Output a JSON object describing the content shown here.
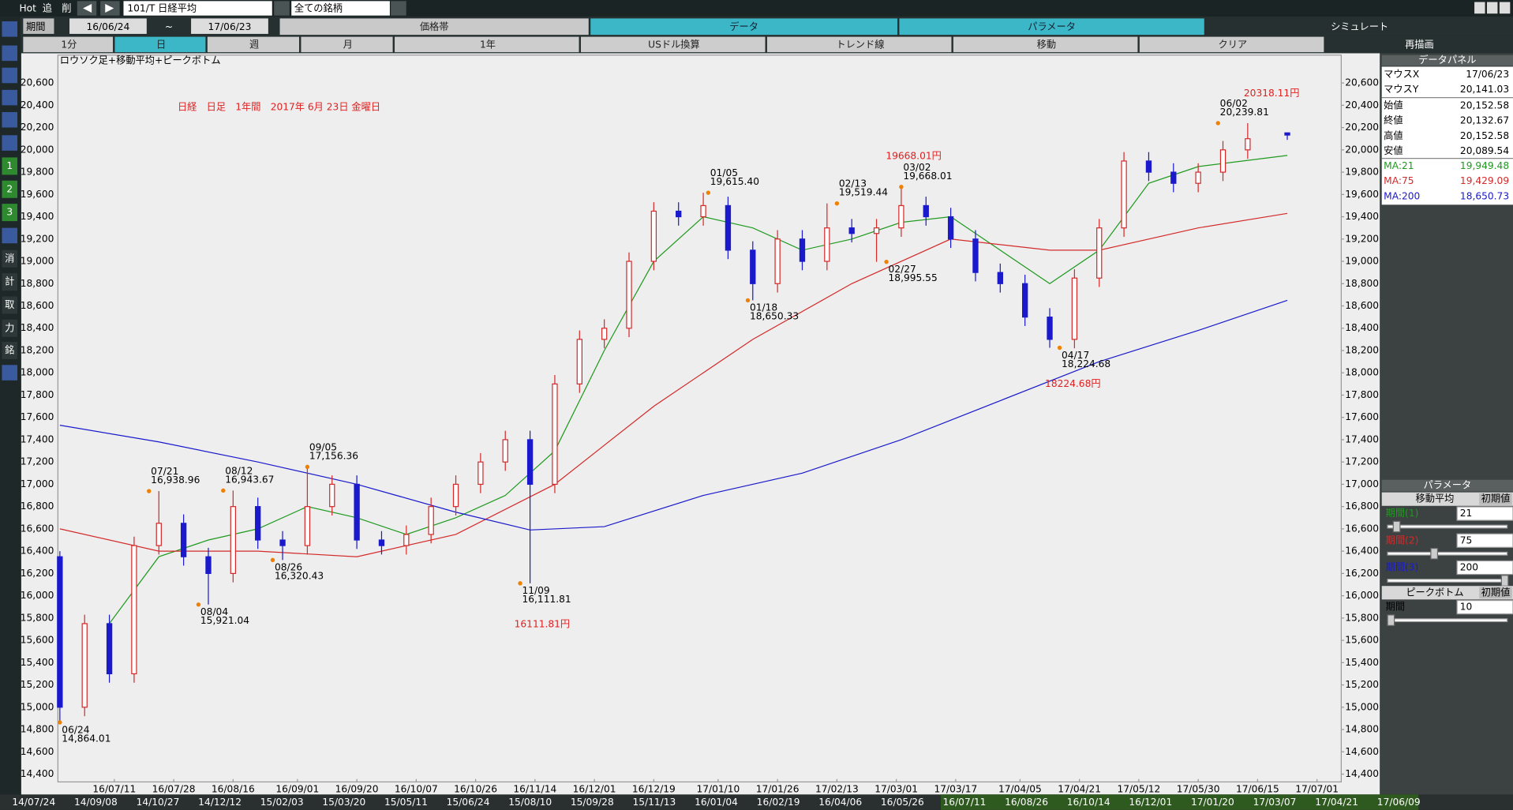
{
  "ui": {
    "top": {
      "hot": "Hot",
      "add": "追",
      "del": "削",
      "symbol": "101/T 日経平均",
      "filter": "全ての銘柄"
    },
    "period": {
      "label": "期間",
      "from": "16/06/24",
      "sep": "~",
      "to": "17/06/23"
    },
    "tabs": [
      "価格帯",
      "データ",
      "パラメータ",
      "シミュレート"
    ],
    "buttons": [
      "1分",
      "日",
      "週",
      "月",
      "1年",
      "USドル換算",
      "トレンド線",
      "移動",
      "クリア",
      "再描画"
    ],
    "left_tools": [
      "1",
      "2",
      "3",
      "消",
      "計",
      "取",
      "力",
      "銘"
    ],
    "caption": "ロウソク足+移動平均+ピークボトム",
    "data_panel": {
      "title": "データパネル",
      "rows": [
        [
          "マウスX",
          "17/06/23"
        ],
        [
          "マウスY",
          "20,141.03"
        ],
        [
          "始値",
          "20,152.58"
        ],
        [
          "終値",
          "20,132.67"
        ],
        [
          "高値",
          "20,152.58"
        ],
        [
          "安値",
          "20,089.54"
        ]
      ],
      "ma_values": [
        "19,949.48",
        "19,429.09",
        "18,650.73"
      ]
    },
    "param_panel": {
      "title": "パラメータ",
      "ma_section": "移動平均",
      "ma_reset": "初期値",
      "ma_rows": [
        [
          "期間(1)",
          21
        ],
        [
          "期間(2)",
          75
        ],
        [
          "期間(3)",
          200
        ]
      ],
      "peak_section": "ピークボトム",
      "peak_reset": "初期値",
      "peak_rows": [
        [
          "期間",
          10
        ]
      ]
    },
    "timeline": [
      "14/07/24",
      "14/09/08",
      "14/10/27",
      "14/12/12",
      "15/02/03",
      "15/03/20",
      "15/05/11",
      "15/06/24",
      "15/08/10",
      "15/09/28",
      "15/11/13",
      "16/01/04",
      "16/02/19",
      "16/04/06",
      "16/05/26",
      "16/07/11",
      "16/08/26",
      "16/10/14",
      "16/12/01",
      "17/01/20",
      "17/03/07",
      "17/04/21",
      "17/06/09"
    ]
  },
  "chart_data": {
    "type": "candlestick",
    "title": "日経　日足　1年間　2017年 6月 23日 金曜日",
    "x": [
      0,
      5,
      10,
      15,
      20,
      25,
      30,
      35,
      40,
      45,
      50,
      55,
      60,
      65,
      70,
      75,
      80,
      85,
      90,
      95,
      100,
      105,
      110,
      115,
      120,
      125,
      130,
      135,
      140,
      145,
      150,
      155,
      160,
      165,
      170,
      175,
      180,
      185,
      190,
      195,
      200,
      205,
      210,
      215,
      220,
      225,
      230,
      235,
      240,
      248
    ],
    "open": [
      16350,
      15000,
      15750,
      15300,
      16450,
      16650,
      16350,
      16200,
      16800,
      16500,
      16450,
      16800,
      17000,
      16500,
      16450,
      16550,
      16800,
      17000,
      17200,
      17400,
      17000,
      17900,
      18300,
      18400,
      19000,
      19450,
      19400,
      19500,
      19100,
      18800,
      19200,
      19000,
      19300,
      19250,
      19300,
      19500,
      19400,
      19200,
      18900,
      18800,
      18500,
      18300,
      18850,
      19300,
      19900,
      19800,
      19700,
      19800,
      20000,
      20152.58
    ],
    "high": [
      16400,
      15830,
      15830,
      16530,
      16938.96,
      16730,
      16430,
      16943.67,
      16880,
      16580,
      17156.36,
      17080,
      17080,
      16580,
      16630,
      16880,
      17080,
      17280,
      17480,
      17480,
      17980,
      18380,
      18480,
      19080,
      19530,
      19530,
      19615.4,
      19580,
      19180,
      19280,
      19280,
      19519.44,
      19380,
      19380,
      19668.01,
      19580,
      19480,
      19280,
      18980,
      18880,
      18580,
      18930,
      19380,
      19980,
      19980,
      19880,
      19880,
      20080,
      20239.81,
      20152.58
    ],
    "low": [
      14864.01,
      14920,
      15220,
      15220,
      16370,
      16270,
      15921.04,
      16120,
      16420,
      16320.43,
      16370,
      16720,
      16420,
      16370,
      16370,
      16470,
      16720,
      16920,
      17120,
      16111.81,
      16920,
      17820,
      18220,
      18320,
      18920,
      19320,
      19320,
      19020,
      18650.33,
      18720,
      18920,
      18920,
      19170,
      18995.55,
      19220,
      19320,
      19120,
      18820,
      18720,
      18420,
      18224.68,
      18220,
      18770,
      19220,
      19720,
      19620,
      19620,
      19720,
      19920,
      20089.54
    ],
    "close": [
      15000,
      15750,
      15300,
      16450,
      16650,
      16350,
      16200,
      16800,
      16500,
      16450,
      16800,
      17000,
      16500,
      16450,
      16550,
      16800,
      17000,
      17200,
      17400,
      17000,
      17900,
      18300,
      18400,
      19000,
      19450,
      19400,
      19500,
      19100,
      18800,
      19200,
      19000,
      19300,
      19250,
      19300,
      19500,
      19400,
      19200,
      18900,
      18800,
      18500,
      18300,
      18850,
      19300,
      19900,
      19800,
      19700,
      19800,
      20000,
      20100,
      20132.67
    ],
    "up_color": "#d42a2a",
    "down_color": "#1a1acc",
    "grid": false,
    "xlim": [
      -0.4,
      258.9
    ],
    "xticks": [
      {
        "value": 11,
        "label": "16/07/11"
      },
      {
        "value": 23,
        "label": "16/07/28"
      },
      {
        "value": 35,
        "label": "16/08/16"
      },
      {
        "value": 48,
        "label": "16/09/01"
      },
      {
        "value": 60,
        "label": "16/09/20"
      },
      {
        "value": 72,
        "label": "16/10/07"
      },
      {
        "value": 84,
        "label": "16/10/26"
      },
      {
        "value": 96,
        "label": "16/11/14"
      },
      {
        "value": 108,
        "label": "16/12/01"
      },
      {
        "value": 120,
        "label": "16/12/19"
      },
      {
        "value": 133,
        "label": "17/01/10"
      },
      {
        "value": 145,
        "label": "17/01/26"
      },
      {
        "value": 157,
        "label": "17/02/13"
      },
      {
        "value": 169,
        "label": "17/03/01"
      },
      {
        "value": 181,
        "label": "17/03/17"
      },
      {
        "value": 194,
        "label": "17/04/05"
      },
      {
        "value": 206,
        "label": "17/04/21"
      },
      {
        "value": 218,
        "label": "17/05/12"
      },
      {
        "value": 230,
        "label": "17/05/30"
      },
      {
        "value": 242,
        "label": "17/06/15"
      },
      {
        "value": 254,
        "label": "17/07/01"
      }
    ],
    "ylim": [
      14330,
      20850
    ],
    "yticks": [
      {
        "value": 14400,
        "label": "14,400"
      },
      {
        "value": 14600,
        "label": "14,600"
      },
      {
        "value": 14800,
        "label": "14,800"
      },
      {
        "value": 15000,
        "label": "15,000"
      },
      {
        "value": 15200,
        "label": "15,200"
      },
      {
        "value": 15400,
        "label": "15,400"
      },
      {
        "value": 15600,
        "label": "15,600"
      },
      {
        "value": 15800,
        "label": "15,800"
      },
      {
        "value": 16000,
        "label": "16,000"
      },
      {
        "value": 16200,
        "label": "16,200"
      },
      {
        "value": 16400,
        "label": "16,400"
      },
      {
        "value": 16600,
        "label": "16,600"
      },
      {
        "value": 16800,
        "label": "16,800"
      },
      {
        "value": 17000,
        "label": "17,000"
      },
      {
        "value": 17200,
        "label": "17,200"
      },
      {
        "value": 17400,
        "label": "17,400"
      },
      {
        "value": 17600,
        "label": "17,600"
      },
      {
        "value": 17800,
        "label": "17,800"
      },
      {
        "value": 18000,
        "label": "18,000"
      },
      {
        "value": 18200,
        "label": "18,200"
      },
      {
        "value": 18400,
        "label": "18,400"
      },
      {
        "value": 18600,
        "label": "18,600"
      },
      {
        "value": 18800,
        "label": "18,800"
      },
      {
        "value": 19000,
        "label": "19,000"
      },
      {
        "value": 19200,
        "label": "19,200"
      },
      {
        "value": 19400,
        "label": "19,400"
      },
      {
        "value": 19600,
        "label": "19,600"
      },
      {
        "value": 19800,
        "label": "19,800"
      },
      {
        "value": 20000,
        "label": "20,000"
      },
      {
        "value": 20200,
        "label": "20,200"
      },
      {
        "value": 20400,
        "label": "20,400"
      },
      {
        "value": 20600,
        "label": "20,600"
      }
    ],
    "series": [
      {
        "name": "MA:21",
        "color": "#1f9a1f",
        "x": [
          10,
          20,
          30,
          40,
          50,
          60,
          70,
          80,
          90,
          100,
          110,
          120,
          130,
          140,
          150,
          160,
          170,
          180,
          190,
          200,
          210,
          220,
          230,
          248
        ],
        "values": [
          15750,
          16350,
          16500,
          16600,
          16800,
          16700,
          16550,
          16700,
          16900,
          17300,
          18200,
          19000,
          19400,
          19300,
          19100,
          19200,
          19350,
          19400,
          19100,
          18800,
          19100,
          19700,
          19850,
          19950
        ]
      },
      {
        "name": "MA:75",
        "color": "#d42a2a",
        "x": [
          0,
          20,
          40,
          60,
          80,
          100,
          120,
          140,
          160,
          180,
          200,
          210,
          230,
          248
        ],
        "values": [
          16600,
          16400,
          16400,
          16350,
          16550,
          17000,
          17700,
          18300,
          18800,
          19200,
          19100,
          19100,
          19300,
          19430
        ]
      },
      {
        "name": "MA:200",
        "color": "#1a1acc",
        "x": [
          0,
          20,
          40,
          60,
          80,
          95,
          110,
          130,
          150,
          170,
          190,
          210,
          230,
          248
        ],
        "values": [
          17530,
          17380,
          17200,
          17000,
          16750,
          16590,
          16620,
          16900,
          17100,
          17400,
          17750,
          18100,
          18380,
          18650
        ]
      }
    ],
    "peaks": [
      {
        "x": 0,
        "date": "06/24",
        "value": 14864.01,
        "label": "14,864.01"
      },
      {
        "x": 18,
        "date": "07/21",
        "value": 16938.96,
        "label": "16,938.96"
      },
      {
        "x": 28,
        "date": "08/04",
        "value": 15921.04,
        "label": "15,921.04"
      },
      {
        "x": 33,
        "date": "08/12",
        "value": 16943.67,
        "label": "16,943.67"
      },
      {
        "x": 43,
        "date": "08/26",
        "value": 16320.43,
        "label": "16,320.43"
      },
      {
        "x": 50,
        "date": "09/05",
        "value": 17156.36,
        "label": "17,156.36"
      },
      {
        "x": 93,
        "date": "11/09",
        "value": 16111.81,
        "label": "16,111.81"
      },
      {
        "x": 131,
        "date": "01/05",
        "value": 19615.4,
        "label": "19,615.40"
      },
      {
        "x": 139,
        "date": "01/18",
        "value": 18650.33,
        "label": "18,650.33"
      },
      {
        "x": 157,
        "date": "02/13",
        "value": 19519.44,
        "label": "19,519.44"
      },
      {
        "x": 167,
        "date": "02/27",
        "value": 18995.55,
        "label": "18,995.55"
      },
      {
        "x": 170,
        "date": "03/02",
        "value": 19668.01,
        "label": "19,668.01"
      },
      {
        "x": 202,
        "date": "04/17",
        "value": 18224.68,
        "label": "18,224.68"
      },
      {
        "x": 234,
        "date": "06/02",
        "value": 20239.81,
        "label": "20,239.81"
      }
    ],
    "annotations": [
      {
        "value": 16111.81,
        "label": "16111.81円"
      },
      {
        "value": 19668.01,
        "label": "19668.01円"
      },
      {
        "value": 18224.68,
        "label": "18224.68円"
      },
      {
        "value": 20318.11,
        "label": "20318.11円"
      }
    ]
  }
}
